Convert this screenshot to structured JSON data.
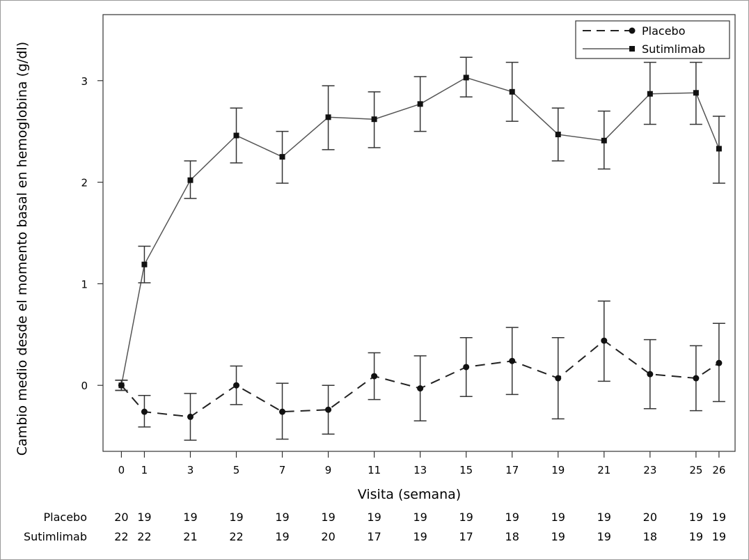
{
  "chart_data": {
    "type": "line",
    "title": "",
    "xlabel": "Visita (semana)",
    "ylabel": "Cambio medio desde el momento basal en hemoglobina  (g/dl)",
    "x": [
      0,
      1,
      3,
      5,
      7,
      9,
      11,
      13,
      15,
      17,
      19,
      21,
      23,
      25,
      26
    ],
    "x_tick_labels": [
      "0",
      "1",
      "3",
      "5",
      "7",
      "9",
      "11",
      "13",
      "15",
      "17",
      "19",
      "21",
      "23",
      "25",
      "26"
    ],
    "y_ticks": [
      0,
      1,
      2,
      3
    ],
    "y_tick_labels": [
      "0",
      "1",
      "2",
      "3"
    ],
    "xlim": [
      -0.8,
      26.7
    ],
    "ylim": [
      -0.65,
      3.65
    ],
    "grid": false,
    "legend_position": "top-right",
    "series": [
      {
        "name": "Placebo",
        "style": "dashed",
        "marker": "circle",
        "color": "#222222",
        "values": [
          0.0,
          -0.26,
          -0.31,
          0.0,
          -0.26,
          -0.24,
          0.09,
          -0.03,
          0.18,
          0.24,
          0.07,
          0.44,
          0.11,
          0.07,
          0.22
        ],
        "error_low": [
          -0.05,
          -0.41,
          -0.54,
          -0.19,
          -0.53,
          -0.48,
          -0.14,
          -0.35,
          -0.11,
          -0.09,
          -0.33,
          0.04,
          -0.23,
          -0.25,
          -0.16
        ],
        "error_high": [
          0.05,
          -0.1,
          -0.08,
          0.19,
          0.02,
          0.0,
          0.32,
          0.29,
          0.47,
          0.57,
          0.47,
          0.83,
          0.45,
          0.39,
          0.61
        ]
      },
      {
        "name": "Sutimlimab",
        "style": "solid",
        "marker": "square",
        "color": "#555555",
        "values": [
          0.0,
          1.19,
          2.02,
          2.46,
          2.25,
          2.64,
          2.62,
          2.77,
          3.03,
          2.89,
          2.47,
          2.41,
          2.87,
          2.88,
          2.33
        ],
        "error_low": [
          -0.05,
          1.01,
          1.84,
          2.19,
          1.99,
          2.32,
          2.34,
          2.5,
          2.84,
          2.6,
          2.21,
          2.13,
          2.57,
          2.57,
          1.99
        ],
        "error_high": [
          0.05,
          1.37,
          2.21,
          2.73,
          2.5,
          2.95,
          2.89,
          3.04,
          3.23,
          3.18,
          2.73,
          2.7,
          3.18,
          3.18,
          2.65
        ]
      }
    ],
    "risk_table": {
      "rows": [
        {
          "label": "Placebo",
          "values": [
            "20",
            "19",
            "19",
            "19",
            "19",
            "19",
            "19",
            "19",
            "19",
            "19",
            "19",
            "19",
            "20",
            "19",
            "19"
          ]
        },
        {
          "label": "Sutimlimab",
          "values": [
            "22",
            "22",
            "21",
            "22",
            "19",
            "20",
            "17",
            "19",
            "17",
            "18",
            "19",
            "19",
            "18",
            "19",
            "19"
          ]
        }
      ]
    }
  }
}
